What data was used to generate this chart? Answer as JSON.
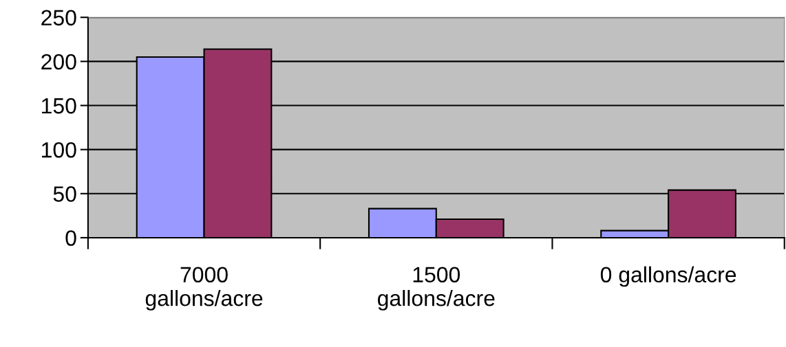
{
  "chart_data": {
    "type": "bar",
    "categories": [
      "7000\ngallons/acre",
      "1500\ngallons/acre",
      "0 gallons/acre"
    ],
    "series": [
      {
        "color": "#9999ff",
        "values": [
          205,
          33,
          8
        ]
      },
      {
        "color": "#993366",
        "values": [
          214,
          21,
          54
        ]
      }
    ],
    "ylim": [
      0,
      250
    ],
    "yticks": [
      0,
      50,
      100,
      150,
      200,
      250
    ],
    "grid": "y",
    "legend": false
  }
}
